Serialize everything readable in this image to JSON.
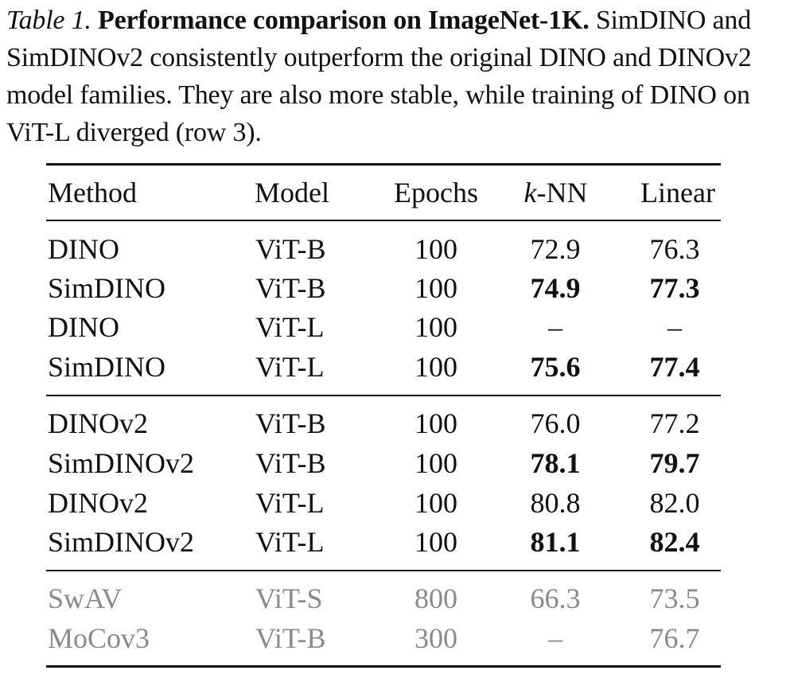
{
  "caption": {
    "label": "Table 1.",
    "title": "Performance comparison on ImageNet-1K.",
    "body": "SimDINO and SimDINOv2 consistently outperform the original DINO and DINOv2 model families. They are also more stable, while training of DINO on ViT-L diverged (row 3)."
  },
  "table": {
    "headers": {
      "method": "Method",
      "model": "Model",
      "epochs": "Epochs",
      "knn_k": "k",
      "knn_rest": "-NN",
      "linear": "Linear"
    },
    "rows": [
      {
        "method": "DINO",
        "model": "ViT-B",
        "epochs": "100",
        "knn": "72.9",
        "linear": "76.3"
      },
      {
        "method": "SimDINO",
        "model": "ViT-B",
        "epochs": "100",
        "knn": "74.9",
        "linear": "77.3"
      },
      {
        "method": "DINO",
        "model": "ViT-L",
        "epochs": "100",
        "knn": "–",
        "linear": "–"
      },
      {
        "method": "SimDINO",
        "model": "ViT-L",
        "epochs": "100",
        "knn": "75.6",
        "linear": "77.4"
      },
      {
        "method": "DINOv2",
        "model": "ViT-B",
        "epochs": "100",
        "knn": "76.0",
        "linear": "77.2"
      },
      {
        "method": "SimDINOv2",
        "model": "ViT-B",
        "epochs": "100",
        "knn": "78.1",
        "linear": "79.7"
      },
      {
        "method": "DINOv2",
        "model": "ViT-L",
        "epochs": "100",
        "knn": "80.8",
        "linear": "82.0"
      },
      {
        "method": "SimDINOv2",
        "model": "ViT-L",
        "epochs": "100",
        "knn": "81.1",
        "linear": "82.4"
      },
      {
        "method": "SwAV",
        "model": "ViT-S",
        "epochs": "800",
        "knn": "66.3",
        "linear": "73.5"
      },
      {
        "method": "MoCov3",
        "model": "ViT-B",
        "epochs": "300",
        "knn": "–",
        "linear": "76.7"
      }
    ]
  }
}
